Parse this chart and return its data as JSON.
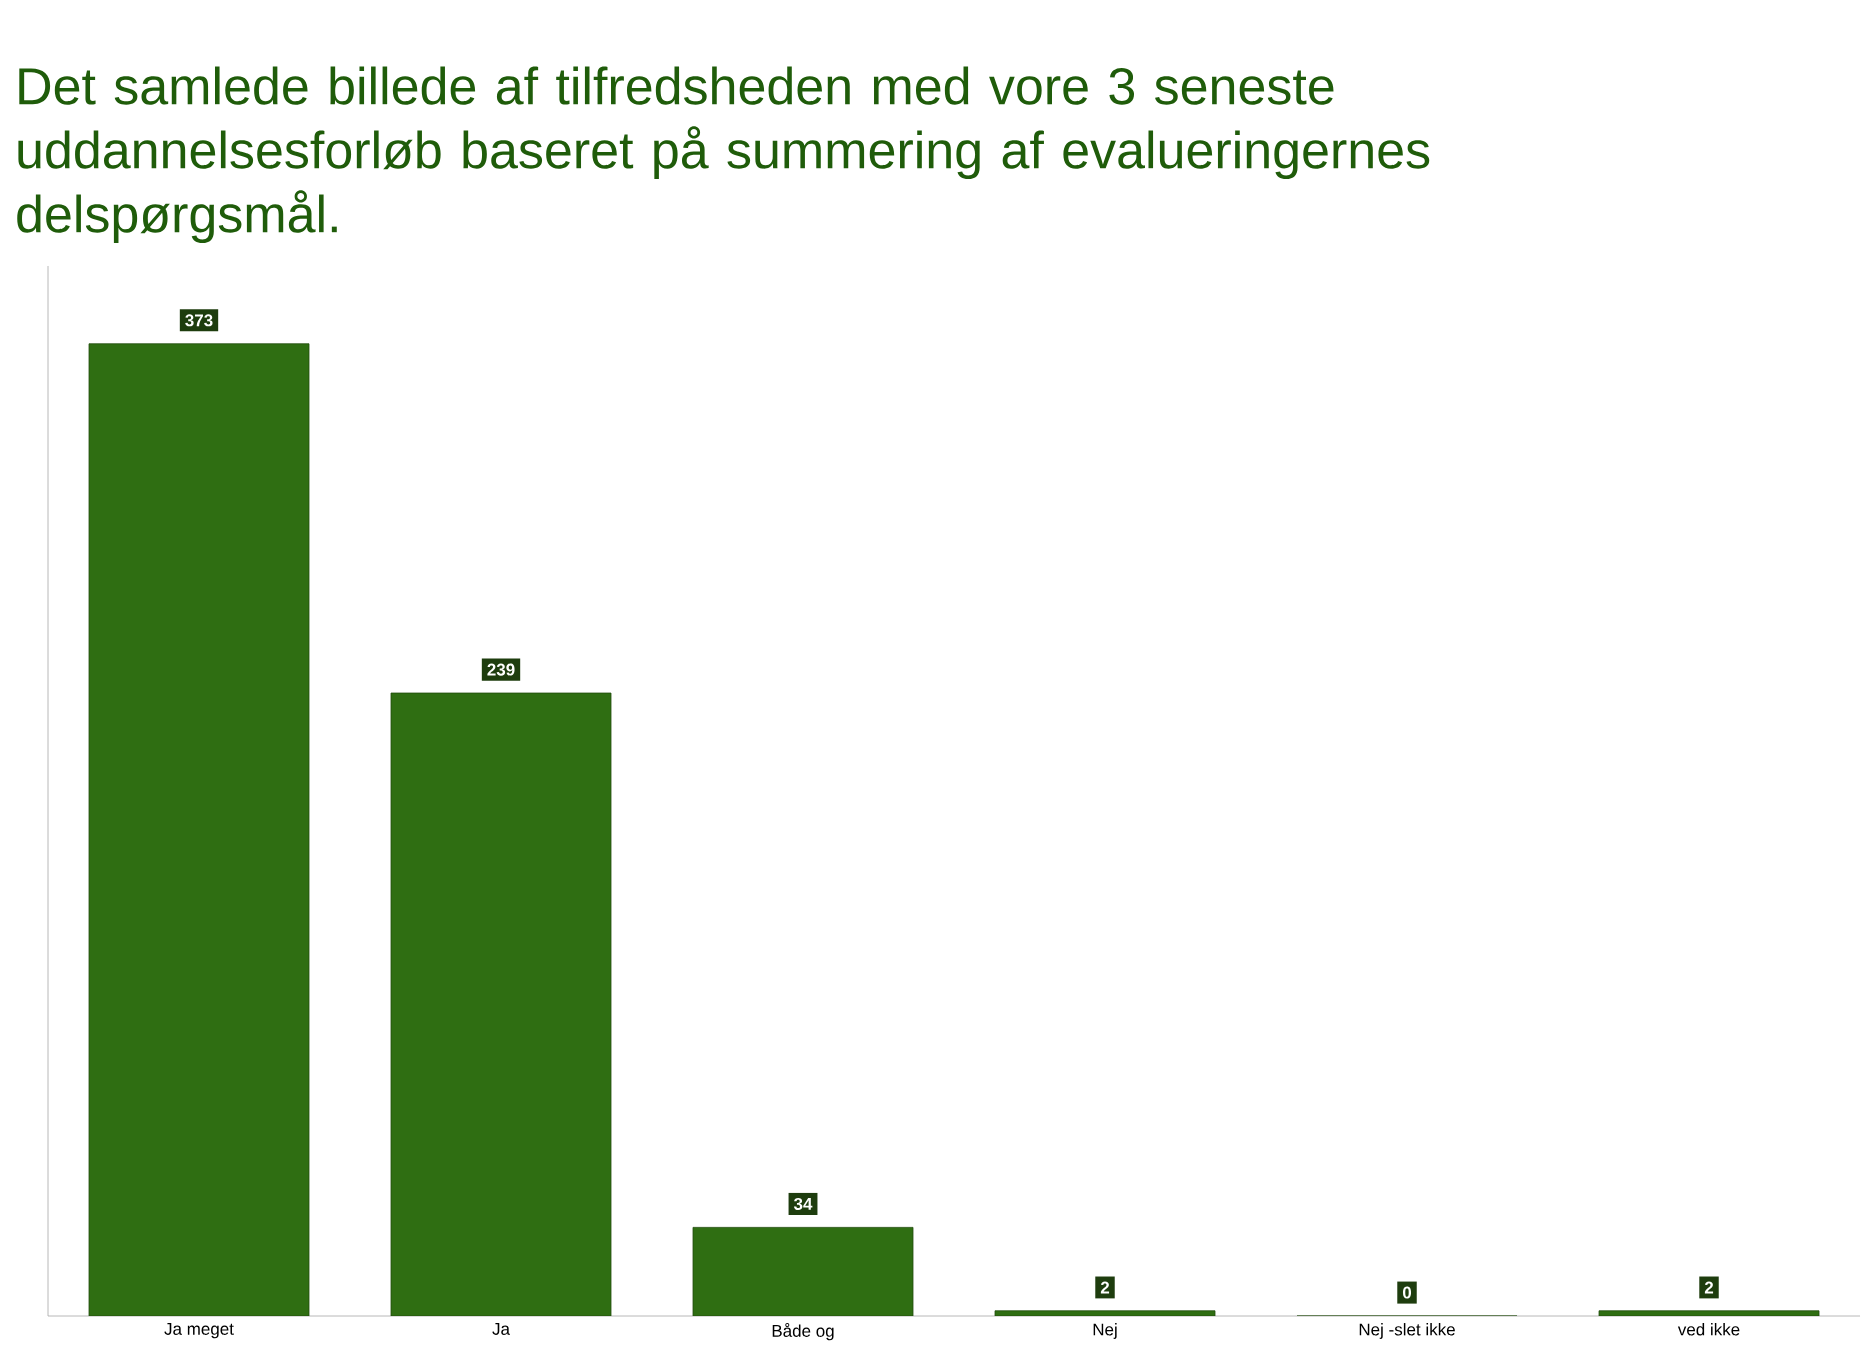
{
  "chart_data": {
    "type": "bar",
    "title": "Det samlede billede af tilfredsheden med vore 3 seneste uddannelsesforløb baseret på summering af evalueringernes delspørgsmål.",
    "categories": [
      "Ja meget",
      "Ja",
      "Både og",
      "Nej",
      "Nej -slet ikke",
      "ved ikke"
    ],
    "values": [
      373,
      239,
      34,
      2,
      0,
      2
    ],
    "color": "#2f6e12",
    "data_labels": true,
    "tick_labels": "x"
  }
}
